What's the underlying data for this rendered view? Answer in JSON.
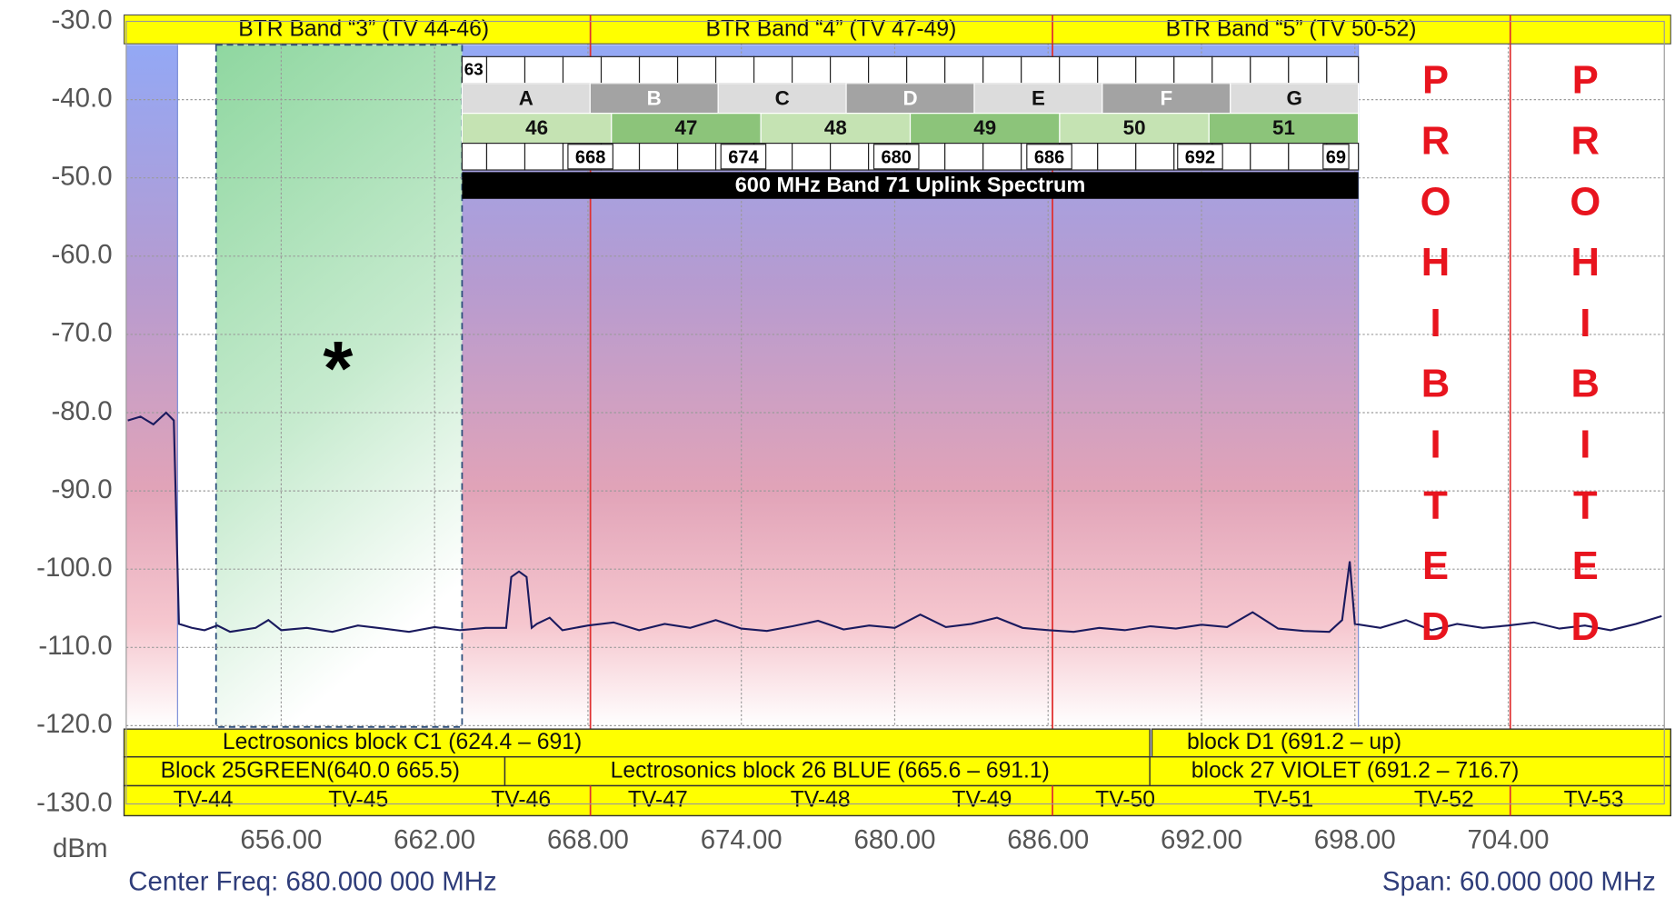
{
  "chart_data": {
    "type": "line",
    "ylabel": "dBm",
    "footer_left": "Center Freq: 680.000 000 MHz",
    "footer_right": "Span: 60.000 000 MHz",
    "xlim": [
      650,
      710
    ],
    "ylim": [
      -130,
      -30
    ],
    "xticks": [
      {
        "value": 656,
        "label": "656.00"
      },
      {
        "value": 662,
        "label": "662.00"
      },
      {
        "value": 668,
        "label": "668.00"
      },
      {
        "value": 674,
        "label": "674.00"
      },
      {
        "value": 680,
        "label": "680.00"
      },
      {
        "value": 686,
        "label": "686.00"
      },
      {
        "value": 692,
        "label": "692.00"
      },
      {
        "value": 698,
        "label": "698.00"
      },
      {
        "value": 704,
        "label": "704.00"
      }
    ],
    "yticks": [
      {
        "value": -30,
        "label": "-30.0"
      },
      {
        "value": -40,
        "label": "-40.0"
      },
      {
        "value": -50,
        "label": "-50.0"
      },
      {
        "value": -60,
        "label": "-60.0"
      },
      {
        "value": -70,
        "label": "-70.0"
      },
      {
        "value": -80,
        "label": "-80.0"
      },
      {
        "value": -90,
        "label": "-90.0"
      },
      {
        "value": -100,
        "label": "-100.0"
      },
      {
        "value": -110,
        "label": "-110.0"
      },
      {
        "value": -120,
        "label": "-120.0"
      },
      {
        "value": -130,
        "label": "-130.0"
      }
    ],
    "grid": true,
    "color": "#1a1a5e",
    "x": [
      650,
      650.5,
      651,
      651.5,
      651.8,
      652,
      652.5,
      653,
      653.5,
      654,
      655,
      655.5,
      656,
      657,
      658,
      659,
      660,
      661,
      662,
      663,
      664,
      664.8,
      665,
      665.3,
      665.6,
      665.8,
      666,
      666.5,
      667,
      668,
      669,
      670,
      671,
      672,
      673,
      674,
      675,
      676,
      677,
      678,
      679,
      680,
      681,
      682,
      683,
      684,
      685,
      686,
      687,
      688,
      689,
      690,
      691,
      692,
      693,
      694,
      695,
      696,
      697,
      697.5,
      697.8,
      698,
      699,
      700,
      701,
      702,
      703,
      704,
      705,
      706,
      707,
      708,
      709,
      710
    ],
    "values": [
      -81,
      -80.5,
      -81.5,
      -80,
      -81,
      -107,
      -107.5,
      -107.8,
      -107.2,
      -108,
      -107.5,
      -106.5,
      -107.8,
      -107.5,
      -108,
      -107.2,
      -107.6,
      -108,
      -107.4,
      -107.8,
      -107.5,
      -107.5,
      -101,
      -100.3,
      -101,
      -107.5,
      -107,
      -106.2,
      -107.8,
      -107.2,
      -106.8,
      -107.8,
      -107,
      -107.5,
      -106.5,
      -107.6,
      -107.9,
      -107.3,
      -106.6,
      -107.7,
      -107.2,
      -107.5,
      -105.8,
      -107.4,
      -107,
      -106.2,
      -107.5,
      -107.8,
      -108,
      -107.5,
      -107.8,
      -107.3,
      -107.6,
      -107.1,
      -107.4,
      -105.5,
      -107.6,
      -107.9,
      -108,
      -106.5,
      -99,
      -107,
      -107.5,
      -106.5,
      -107.8,
      -107,
      -107.5,
      -107.2,
      -106.8,
      -107.6,
      -107.2,
      -107.8,
      -107,
      -106
    ],
    "top_bands": [
      "BTR Band “3” (TV 44-46)",
      "BTR Band “4” (TV 47-49)",
      "BTR Band “5” (TV 50-52)"
    ],
    "band71": {
      "blocks": [
        "A",
        "B",
        "C",
        "D",
        "E",
        "F",
        "G"
      ],
      "channels": [
        "46",
        "47",
        "48",
        "49",
        "50",
        "51"
      ],
      "top_number": "63",
      "bottom_numbers": [
        "668",
        "674",
        "680",
        "686",
        "692",
        "69"
      ],
      "caption": "600 MHz Band 71 Uplink Spectrum"
    },
    "prohibited": [
      "PROHIBITED",
      "PROHIBITED"
    ],
    "asterisk": "*",
    "row1": [
      "Lectrosonics block C1 (624.4 – 691)",
      "block D1 (691.2 – up)"
    ],
    "row2": [
      "Block 25GREEN(640.0 665.5)",
      "Lectrosonics block 26 BLUE (665.6 – 691.1)",
      "block 27 VIOLET (691.2 – 716.7)"
    ],
    "tv_channels": [
      "TV-44",
      "TV-45",
      "TV-46",
      "TV-47",
      "TV-48",
      "TV-49",
      "TV-50",
      "TV-51",
      "TV-52",
      "TV-53"
    ]
  }
}
